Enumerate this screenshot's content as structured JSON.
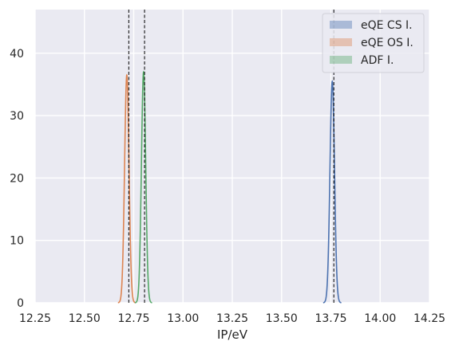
{
  "chart_data": {
    "type": "line",
    "xlabel": "IP/eV",
    "ylabel": "",
    "xlim": [
      12.25,
      14.25
    ],
    "ylim": [
      0,
      47
    ],
    "x_ticks": [
      "12.25",
      "12.50",
      "12.75",
      "13.00",
      "13.25",
      "13.50",
      "13.75",
      "14.00",
      "14.25"
    ],
    "y_ticks": [
      "0",
      "10",
      "20",
      "30",
      "40"
    ],
    "grid": true,
    "background": "#EAEAF2",
    "legend_position": "top-right",
    "series": [
      {
        "name": "eQE CS I.",
        "color": "#4C72B0",
        "center": 13.757,
        "peak": 35.5,
        "sigma": 0.0115
      },
      {
        "name": "eQE OS I.",
        "color": "#DD8452",
        "center": 12.715,
        "peak": 36.5,
        "sigma": 0.0112
      },
      {
        "name": "ADF I.",
        "color": "#55A868",
        "center": 12.8,
        "peak": 37.0,
        "sigma": 0.0108
      }
    ],
    "reference_lines": [
      12.725,
      12.805,
      13.765
    ]
  }
}
